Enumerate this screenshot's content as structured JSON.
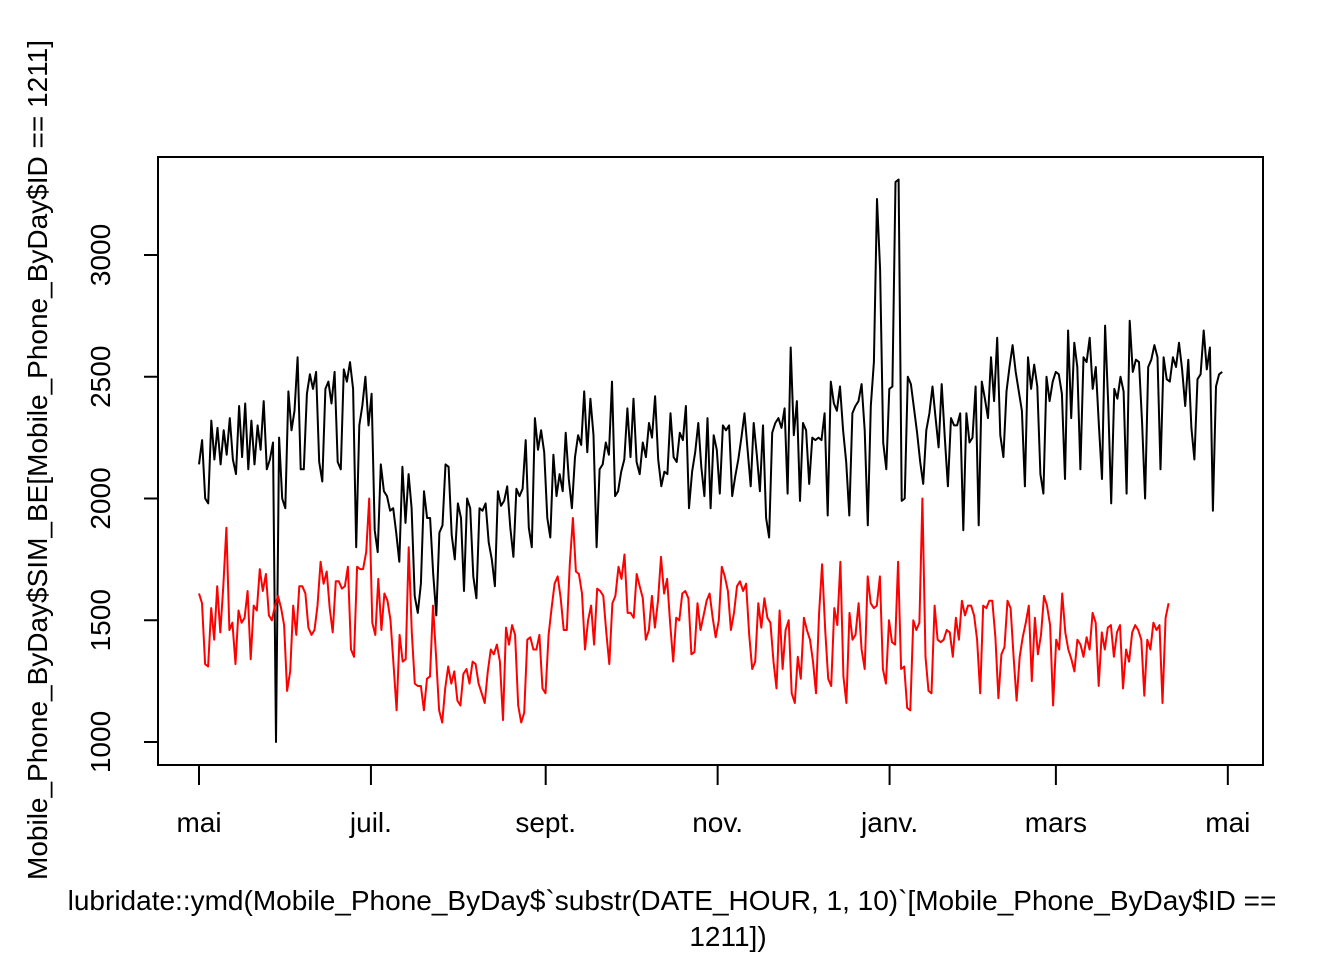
{
  "chart_data": {
    "type": "line",
    "title": "",
    "xlabel_lines": [
      "lubridate::ymd(Mobile_Phone_ByDay$`substr(DATE_HOUR, 1, 10)`[Mobile_Phone_ByDay$ID ==",
      "1211])"
    ],
    "ylabel": "Mobile_Phone_ByDay$SIM_BE[Mobile_Phone_ByDay$ID == 1211]",
    "x_start": "2016-05-01",
    "x_end": "2017-04-30",
    "x_ticks": [
      {
        "date": "2016-05-01",
        "label": "mai"
      },
      {
        "date": "2016-07-01",
        "label": "juil."
      },
      {
        "date": "2016-09-01",
        "label": "sept."
      },
      {
        "date": "2016-11-01",
        "label": "nov."
      },
      {
        "date": "2017-01-01",
        "label": "janv."
      },
      {
        "date": "2017-03-01",
        "label": "mars"
      },
      {
        "date": "2017-05-01",
        "label": "mai"
      }
    ],
    "y_ticks": [
      1000,
      1500,
      2000,
      2500,
      3000
    ],
    "ylim": [
      910,
      3390
    ],
    "grid": false,
    "legend": "none",
    "series": [
      {
        "color": "#000000",
        "start": "2016-05-01",
        "end": "2017-04-29",
        "values": [
          2140,
          2240,
          2000,
          1980,
          2320,
          2160,
          2290,
          2140,
          2280,
          2180,
          2330,
          2160,
          2100,
          2380,
          2170,
          2390,
          2120,
          2320,
          2140,
          2300,
          2200,
          2400,
          2120,
          2160,
          2230,
          1000,
          2250,
          2000,
          1960,
          2440,
          2280,
          2360,
          2580,
          2120,
          2120,
          2430,
          2510,
          2450,
          2520,
          2150,
          2070,
          2450,
          2480,
          2390,
          2520,
          2150,
          2120,
          2530,
          2480,
          2560,
          2450,
          1800,
          2300,
          2380,
          2500,
          2300,
          2430,
          1870,
          1780,
          2140,
          2030,
          2010,
          1950,
          1960,
          1860,
          1740,
          2130,
          1900,
          2100,
          1960,
          1600,
          1530,
          1650,
          2030,
          1920,
          1920,
          1690,
          1520,
          1860,
          1890,
          2140,
          2130,
          1850,
          1750,
          1980,
          1920,
          1620,
          2000,
          1960,
          1680,
          1590,
          1960,
          1950,
          1980,
          1820,
          1750,
          1640,
          2030,
          1970,
          1990,
          2050,
          1880,
          1760,
          2040,
          2010,
          2040,
          2240,
          1880,
          1800,
          2330,
          2200,
          2280,
          2190,
          1920,
          1840,
          2180,
          2010,
          2100,
          2030,
          2270,
          2080,
          1960,
          2170,
          2260,
          2220,
          2440,
          2190,
          2410,
          2260,
          1800,
          2120,
          2140,
          2230,
          2180,
          2480,
          2010,
          2030,
          2110,
          2160,
          2370,
          2170,
          2410,
          2150,
          2100,
          2230,
          2170,
          2310,
          2250,
          2420,
          2160,
          2050,
          2110,
          2100,
          2350,
          2170,
          2150,
          2270,
          2240,
          2380,
          1960,
          2110,
          2190,
          2310,
          2130,
          2010,
          2330,
          1960,
          2260,
          2200,
          2020,
          2300,
          2280,
          2300,
          2010,
          2090,
          2160,
          2250,
          2350,
          2200,
          2050,
          2310,
          2180,
          2030,
          2300,
          1920,
          1840,
          2270,
          2310,
          2330,
          2290,
          2370,
          2020,
          2620,
          2260,
          2400,
          1990,
          2310,
          2280,
          2060,
          2250,
          2240,
          2250,
          2240,
          2350,
          1930,
          2480,
          2390,
          2360,
          2460,
          2280,
          2150,
          1930,
          2350,
          2380,
          2400,
          2470,
          2280,
          1890,
          2380,
          2560,
          3230,
          2940,
          2230,
          2120,
          2450,
          2460,
          3300,
          3310,
          1990,
          2000,
          2500,
          2470,
          2370,
          2270,
          2150,
          2060,
          2280,
          2350,
          2460,
          2330,
          2210,
          2470,
          2250,
          2050,
          2330,
          2300,
          2300,
          2350,
          1870,
          2350,
          2230,
          2250,
          2460,
          1890,
          2480,
          2410,
          2330,
          2580,
          2400,
          2660,
          2260,
          2170,
          2440,
          2540,
          2630,
          2520,
          2440,
          2360,
          2050,
          2580,
          2450,
          2550,
          2460,
          2100,
          2020,
          2500,
          2400,
          2480,
          2520,
          2510,
          2430,
          2080,
          2690,
          2330,
          2640,
          2540,
          2120,
          2580,
          2560,
          2660,
          2450,
          2540,
          2300,
          2080,
          2710,
          2390,
          1980,
          2450,
          2410,
          2500,
          2440,
          2020,
          2730,
          2520,
          2570,
          2560,
          2310,
          2000,
          2540,
          2570,
          2630,
          2580,
          2120,
          2580,
          2490,
          2480,
          2580,
          2540,
          2640,
          2530,
          2380,
          2570,
          2290,
          2160,
          2490,
          2510,
          2690,
          2530,
          2620,
          1950,
          2460,
          2510,
          2520
        ]
      },
      {
        "color": "#ff0000",
        "start": "2016-05-01",
        "end": "2017-04-10",
        "values": [
          1610,
          1570,
          1320,
          1310,
          1550,
          1420,
          1640,
          1450,
          1640,
          1880,
          1460,
          1490,
          1320,
          1540,
          1490,
          1510,
          1620,
          1340,
          1560,
          1540,
          1710,
          1620,
          1690,
          1520,
          1500,
          1560,
          1600,
          1550,
          1480,
          1210,
          1290,
          1560,
          1440,
          1640,
          1640,
          1610,
          1470,
          1440,
          1460,
          1560,
          1740,
          1650,
          1700,
          1550,
          1450,
          1660,
          1660,
          1630,
          1640,
          1720,
          1380,
          1350,
          1720,
          1710,
          1710,
          1780,
          2000,
          1490,
          1440,
          1670,
          1460,
          1610,
          1580,
          1500,
          1320,
          1130,
          1440,
          1330,
          1340,
          1800,
          1450,
          1240,
          1230,
          1230,
          1130,
          1260,
          1270,
          1560,
          1350,
          1130,
          1080,
          1220,
          1310,
          1240,
          1290,
          1170,
          1150,
          1280,
          1300,
          1240,
          1330,
          1320,
          1240,
          1200,
          1160,
          1290,
          1380,
          1360,
          1400,
          1330,
          1090,
          1470,
          1400,
          1480,
          1440,
          1150,
          1080,
          1120,
          1420,
          1430,
          1380,
          1380,
          1440,
          1220,
          1200,
          1440,
          1550,
          1650,
          1680,
          1590,
          1460,
          1460,
          1730,
          1920,
          1700,
          1690,
          1610,
          1380,
          1500,
          1560,
          1400,
          1630,
          1620,
          1600,
          1450,
          1320,
          1570,
          1600,
          1720,
          1670,
          1770,
          1530,
          1530,
          1510,
          1690,
          1640,
          1590,
          1420,
          1460,
          1600,
          1470,
          1580,
          1760,
          1610,
          1670,
          1490,
          1330,
          1510,
          1500,
          1610,
          1620,
          1590,
          1360,
          1370,
          1570,
          1460,
          1520,
          1580,
          1610,
          1510,
          1430,
          1500,
          1720,
          1680,
          1620,
          1460,
          1530,
          1640,
          1660,
          1620,
          1650,
          1440,
          1300,
          1330,
          1570,
          1470,
          1590,
          1510,
          1490,
          1330,
          1220,
          1540,
          1300,
          1460,
          1500,
          1200,
          1160,
          1350,
          1260,
          1510,
          1460,
          1420,
          1330,
          1200,
          1530,
          1730,
          1460,
          1260,
          1230,
          1550,
          1480,
          1740,
          1270,
          1160,
          1530,
          1420,
          1440,
          1570,
          1380,
          1300,
          1680,
          1570,
          1550,
          1560,
          1680,
          1300,
          1240,
          1500,
          1410,
          1400,
          1740,
          1300,
          1310,
          1140,
          1130,
          1500,
          1460,
          1490,
          2000,
          1350,
          1210,
          1200,
          1560,
          1420,
          1410,
          1420,
          1460,
          1450,
          1350,
          1510,
          1420,
          1580,
          1520,
          1560,
          1560,
          1520,
          1420,
          1200,
          1560,
          1550,
          1580,
          1580,
          1430,
          1180,
          1360,
          1390,
          1580,
          1550,
          1350,
          1170,
          1350,
          1430,
          1490,
          1560,
          1250,
          1510,
          1360,
          1440,
          1600,
          1560,
          1480,
          1150,
          1420,
          1380,
          1610,
          1450,
          1380,
          1340,
          1290,
          1420,
          1400,
          1350,
          1430,
          1380,
          1530,
          1490,
          1230,
          1450,
          1380,
          1470,
          1480,
          1350,
          1450,
          1480,
          1220,
          1380,
          1330,
          1450,
          1480,
          1460,
          1420,
          1190,
          1420,
          1380,
          1490,
          1460,
          1480,
          1160,
          1510,
          1570
        ]
      }
    ]
  }
}
